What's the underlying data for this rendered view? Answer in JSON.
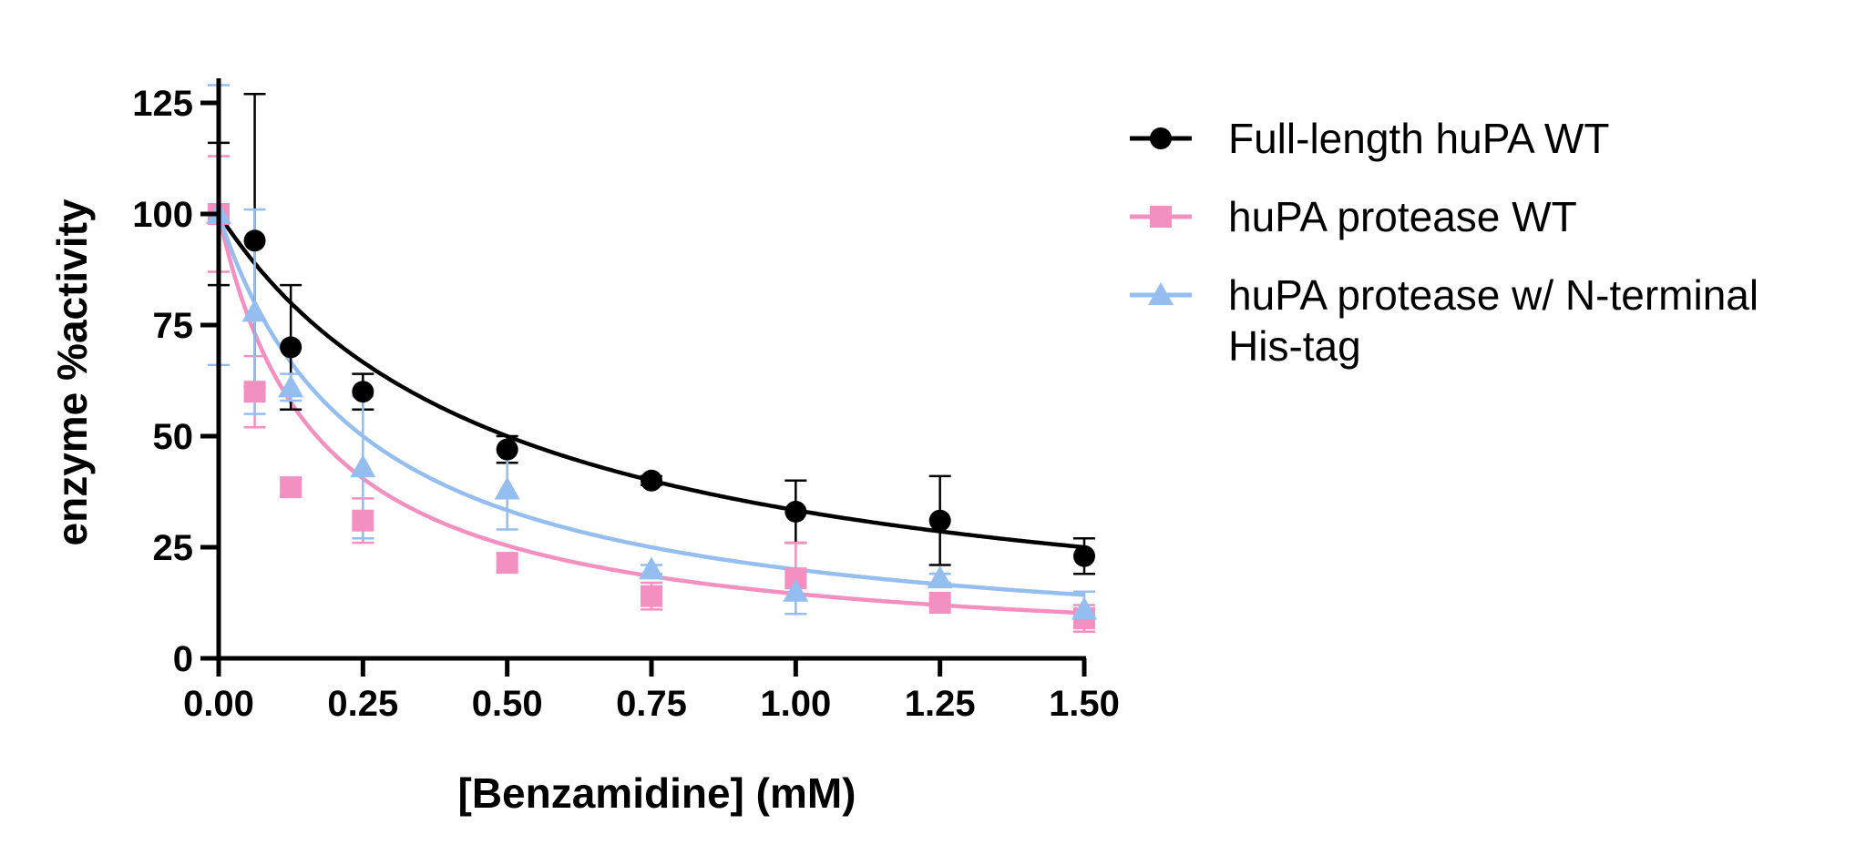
{
  "chart_data": {
    "type": "scatter",
    "title": "",
    "xlabel": "[Benzamidine] (mM)",
    "ylabel": "enzyme %activity",
    "xlim": [
      0,
      1.5
    ],
    "ylim": [
      0,
      125
    ],
    "xticks": [
      "0.00",
      "0.25",
      "0.50",
      "0.75",
      "1.00",
      "1.25",
      "1.50"
    ],
    "yticks": [
      "0",
      "25",
      "50",
      "75",
      "100",
      "125"
    ],
    "grid": false,
    "legend_position": "right",
    "series": [
      {
        "name": "Full-length huPA WT",
        "color": "#000000",
        "marker": "circle",
        "x": [
          0,
          0.0625,
          0.125,
          0.25,
          0.5,
          0.75,
          1.0,
          1.25,
          1.5
        ],
        "y": [
          100,
          94,
          70,
          60,
          47,
          40,
          33,
          31,
          23
        ],
        "err": [
          16,
          33,
          14,
          4,
          3,
          1,
          7,
          10,
          4
        ],
        "fit_ic50": 0.5
      },
      {
        "name": "huPA protease WT",
        "color": "#f48fc1",
        "marker": "square",
        "x": [
          0,
          0.0625,
          0.125,
          0.25,
          0.5,
          0.75,
          1.0,
          1.25,
          1.5
        ],
        "y": [
          100,
          60,
          38.5,
          31,
          21.5,
          14,
          18,
          12.5,
          9
        ],
        "err": [
          13,
          8,
          2,
          5,
          2,
          3,
          8,
          1,
          3
        ],
        "fit_ic50": 0.17
      },
      {
        "name": "huPA protease w/ N-terminal His-tag",
        "color": "#94bdf0",
        "marker": "triangle",
        "x": [
          0,
          0.0625,
          0.125,
          0.25,
          0.5,
          0.75,
          1.0,
          1.25,
          1.5
        ],
        "y": [
          100,
          78,
          61,
          43,
          38,
          20,
          15,
          18,
          11
        ],
        "err": [
          34,
          23,
          3,
          16,
          9,
          1,
          5,
          1,
          4
        ],
        "fit_ic50": 0.25
      }
    ]
  }
}
